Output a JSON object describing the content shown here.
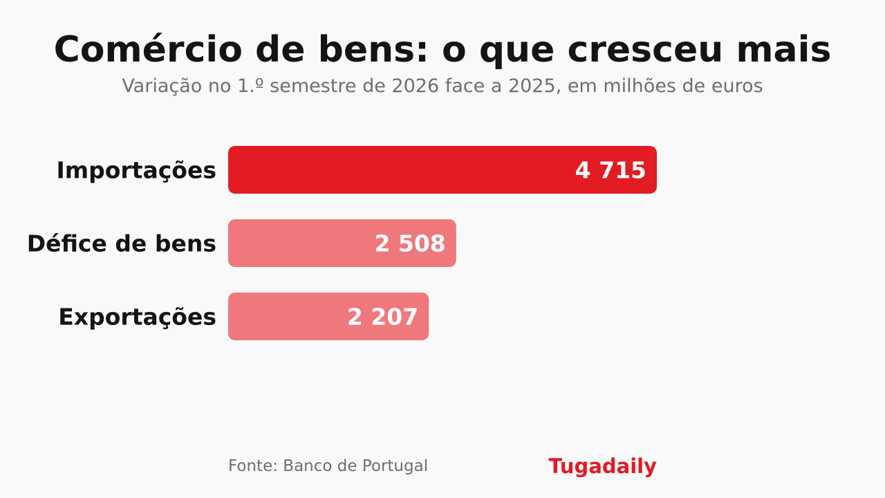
{
  "chart_data": {
    "type": "bar",
    "orientation": "horizontal",
    "title": "Comércio de bens: o que cresceu mais",
    "subtitle": "Variação no 1.º semestre de 2026 face a 2025, em milhões de euros",
    "categories": [
      "Importações",
      "Défice de bens",
      "Exportações"
    ],
    "values": [
      4715,
      2508,
      2207
    ],
    "value_labels": [
      "4 715",
      "2 508",
      "2 207"
    ],
    "bar_colors": [
      "#e31b23",
      "#ef787d",
      "#ef787d"
    ],
    "xlim": [
      0,
      4715
    ],
    "grid": false,
    "legend": "none"
  },
  "footer": {
    "source": "Fonte: Banco de Portugal",
    "brand": "Tugadaily"
  },
  "colors": {
    "background": "#f9f9f9",
    "text": "#141414",
    "muted": "#6e6e73",
    "accent": "#e31b23"
  }
}
